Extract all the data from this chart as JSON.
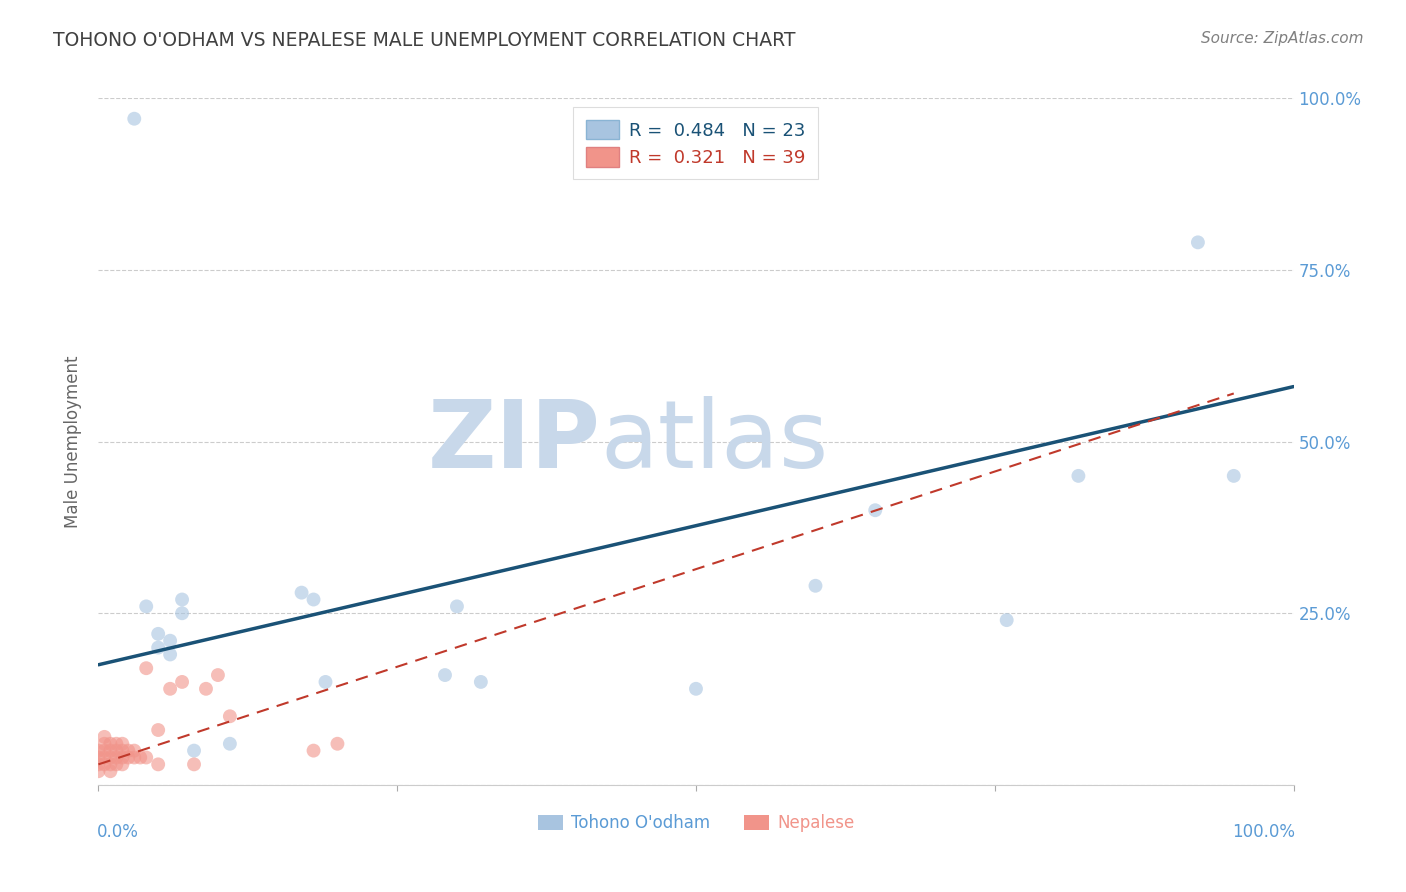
{
  "title": "TOHONO O'ODHAM VS NEPALESE MALE UNEMPLOYMENT CORRELATION CHART",
  "source": "Source: ZipAtlas.com",
  "ylabel": "Male Unemployment",
  "watermark_zip": "ZIP",
  "watermark_atlas": "atlas",
  "legend": {
    "blue_R": "0.484",
    "blue_N": "23",
    "pink_R": "0.321",
    "pink_N": "39"
  },
  "blue_scatter": [
    [
      0.03,
      0.97
    ],
    [
      0.04,
      0.26
    ],
    [
      0.05,
      0.22
    ],
    [
      0.05,
      0.2
    ],
    [
      0.06,
      0.21
    ],
    [
      0.06,
      0.19
    ],
    [
      0.07,
      0.27
    ],
    [
      0.07,
      0.25
    ],
    [
      0.08,
      0.05
    ],
    [
      0.11,
      0.06
    ],
    [
      0.17,
      0.28
    ],
    [
      0.18,
      0.27
    ],
    [
      0.19,
      0.15
    ],
    [
      0.29,
      0.16
    ],
    [
      0.3,
      0.26
    ],
    [
      0.32,
      0.15
    ],
    [
      0.5,
      0.14
    ],
    [
      0.6,
      0.29
    ],
    [
      0.65,
      0.4
    ],
    [
      0.76,
      0.24
    ],
    [
      0.82,
      0.45
    ],
    [
      0.92,
      0.79
    ],
    [
      0.95,
      0.45
    ]
  ],
  "pink_scatter": [
    [
      0.0,
      0.02
    ],
    [
      0.0,
      0.03
    ],
    [
      0.0,
      0.04
    ],
    [
      0.0,
      0.05
    ],
    [
      0.005,
      0.03
    ],
    [
      0.005,
      0.04
    ],
    [
      0.005,
      0.05
    ],
    [
      0.005,
      0.06
    ],
    [
      0.005,
      0.07
    ],
    [
      0.01,
      0.02
    ],
    [
      0.01,
      0.03
    ],
    [
      0.01,
      0.04
    ],
    [
      0.01,
      0.05
    ],
    [
      0.01,
      0.06
    ],
    [
      0.015,
      0.03
    ],
    [
      0.015,
      0.04
    ],
    [
      0.015,
      0.05
    ],
    [
      0.015,
      0.06
    ],
    [
      0.02,
      0.03
    ],
    [
      0.02,
      0.04
    ],
    [
      0.02,
      0.05
    ],
    [
      0.02,
      0.06
    ],
    [
      0.025,
      0.04
    ],
    [
      0.025,
      0.05
    ],
    [
      0.03,
      0.04
    ],
    [
      0.03,
      0.05
    ],
    [
      0.035,
      0.04
    ],
    [
      0.04,
      0.04
    ],
    [
      0.04,
      0.17
    ],
    [
      0.05,
      0.08
    ],
    [
      0.05,
      0.03
    ],
    [
      0.06,
      0.14
    ],
    [
      0.07,
      0.15
    ],
    [
      0.08,
      0.03
    ],
    [
      0.09,
      0.14
    ],
    [
      0.1,
      0.16
    ],
    [
      0.11,
      0.1
    ],
    [
      0.18,
      0.05
    ],
    [
      0.2,
      0.06
    ]
  ],
  "blue_line": {
    "x0": 0.0,
    "y0": 0.175,
    "x1": 1.0,
    "y1": 0.58
  },
  "pink_line": {
    "x0": 0.0,
    "y0": 0.03,
    "x1": 0.95,
    "y1": 0.57
  },
  "blue_color": "#a8c4e0",
  "blue_line_color": "#1a5276",
  "pink_color": "#f1948a",
  "pink_line_color": "#c0392b",
  "bg_color": "#ffffff",
  "grid_color": "#cccccc",
  "axis_label_color": "#5b9bd5",
  "title_color": "#404040",
  "source_color": "#808080",
  "scatter_alpha": 0.6,
  "scatter_size": 100,
  "xlim": [
    0.0,
    1.0
  ],
  "ylim": [
    0.0,
    1.0
  ],
  "yticks": [
    0.0,
    0.25,
    0.5,
    0.75,
    1.0
  ],
  "ytick_labels": [
    "",
    "25.0%",
    "50.0%",
    "75.0%",
    "100.0%"
  ],
  "xtick_labels": [
    "0.0%",
    "100.0%"
  ],
  "bottom_legend_labels": [
    "Tohono O'odham",
    "Nepalese"
  ]
}
